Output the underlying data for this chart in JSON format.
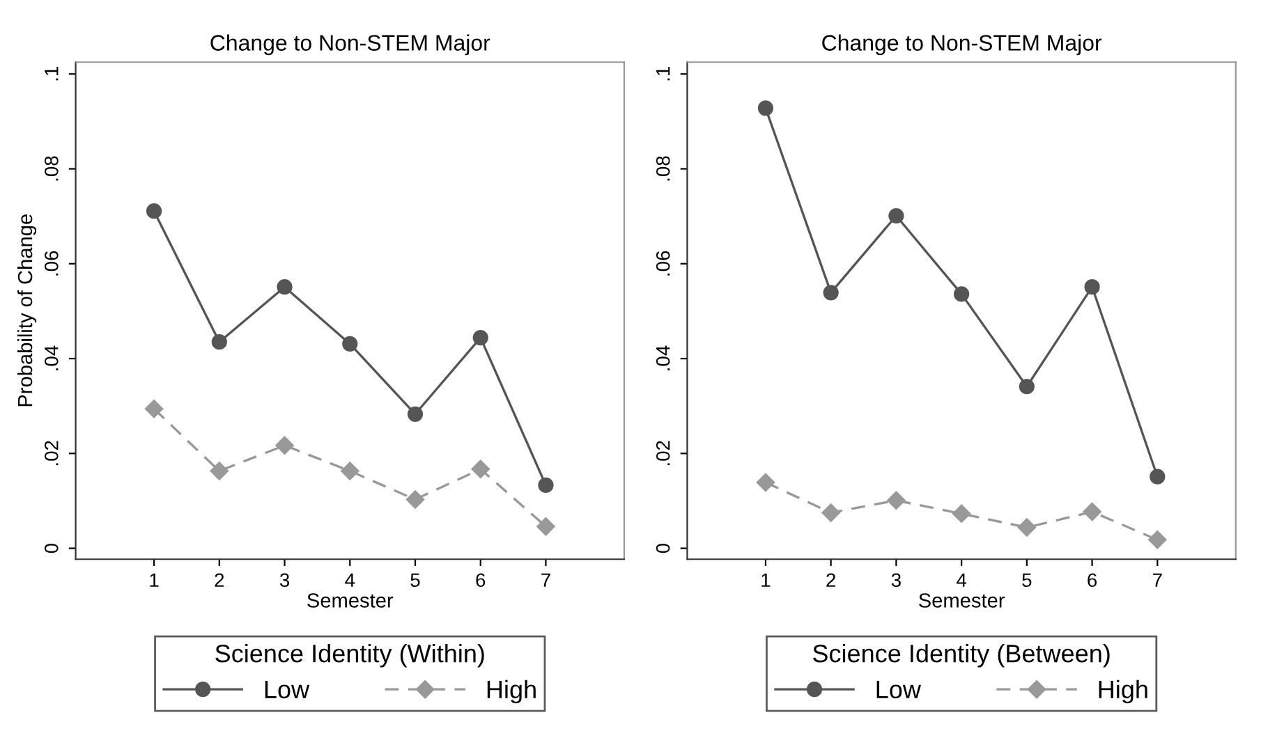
{
  "chart_data": [
    {
      "type": "line",
      "title": "Change to Non-STEM Major",
      "xlabel": "Semester",
      "ylabel": "Probability of Change",
      "legend_title": "Science Identity (Within)",
      "legend": "bottom",
      "x": [
        1,
        2,
        3,
        4,
        5,
        6,
        7
      ],
      "xlim": [
        -0.2,
        8.2
      ],
      "xticks": [
        1,
        2,
        3,
        4,
        5,
        6,
        7
      ],
      "ylim": [
        -0.0023,
        0.1025
      ],
      "yticks": [
        {
          "value": 0,
          "label": "0"
        },
        {
          "value": 0.02,
          "label": ".02"
        },
        {
          "value": 0.04,
          "label": ".04"
        },
        {
          "value": 0.06,
          "label": ".06"
        },
        {
          "value": 0.08,
          "label": ".08"
        },
        {
          "value": 0.1,
          "label": ".1"
        }
      ],
      "series": [
        {
          "name": "Low",
          "color": "#555555",
          "marker": "circle",
          "line_style": "solid",
          "values": [
            0.0711,
            0.0435,
            0.0551,
            0.0431,
            0.0283,
            0.0444,
            0.0133
          ]
        },
        {
          "name": "High",
          "color": "#999999",
          "marker": "diamond",
          "line_style": "dashed",
          "values": [
            0.0294,
            0.0163,
            0.0217,
            0.0163,
            0.0103,
            0.0167,
            0.0046
          ]
        }
      ]
    },
    {
      "type": "line",
      "title": "Change to Non-STEM Major",
      "xlabel": "Semester",
      "legend_title": "Science Identity (Between)",
      "legend": "bottom",
      "x": [
        1,
        2,
        3,
        4,
        5,
        6,
        7
      ],
      "xlim": [
        -0.2,
        8.2
      ],
      "xticks": [
        1,
        2,
        3,
        4,
        5,
        6,
        7
      ],
      "ylim": [
        -0.0023,
        0.1025
      ],
      "yticks": [
        {
          "value": 0,
          "label": "0"
        },
        {
          "value": 0.02,
          "label": ".02"
        },
        {
          "value": 0.04,
          "label": ".04"
        },
        {
          "value": 0.06,
          "label": ".06"
        },
        {
          "value": 0.08,
          "label": ".08"
        },
        {
          "value": 0.1,
          "label": ".1"
        }
      ],
      "series": [
        {
          "name": "Low",
          "color": "#555555",
          "marker": "circle",
          "line_style": "solid",
          "values": [
            0.0928,
            0.0539,
            0.0701,
            0.0536,
            0.0341,
            0.0551,
            0.0151
          ]
        },
        {
          "name": "High",
          "color": "#999999",
          "marker": "diamond",
          "line_style": "dashed",
          "values": [
            0.0139,
            0.0075,
            0.0101,
            0.0073,
            0.0044,
            0.0077,
            0.0018
          ]
        }
      ]
    }
  ]
}
